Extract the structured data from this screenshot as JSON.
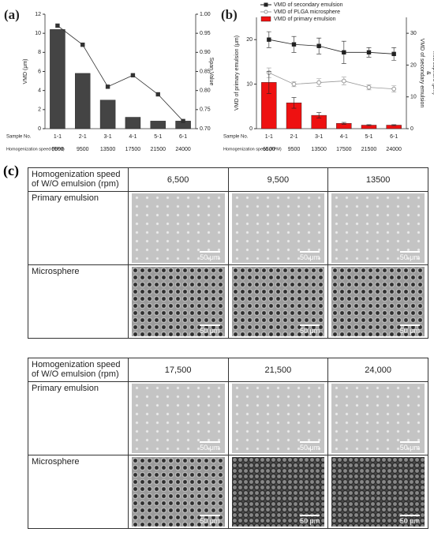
{
  "chart_data": [
    {
      "type": "combo",
      "panel_label": "(a)",
      "ylabel": "VMD (μm)",
      "y2label": [
        "Span Value"
      ],
      "row_labels": [
        "Sample No.",
        "Homogenization speed (RPM)"
      ],
      "categories": [
        "1-1",
        "2-1",
        "3-1",
        "4-1",
        "5-1",
        "6-1"
      ],
      "speeds": [
        6500,
        9500,
        13500,
        17500,
        21500,
        24000
      ],
      "ylim": [
        0,
        12
      ],
      "yticks": [
        0,
        2,
        4,
        6,
        8,
        10,
        12
      ],
      "y2lim": [
        0.7,
        1.0
      ],
      "y2ticks": [
        {
          "value": 0.7,
          "label": "0.70"
        },
        {
          "value": 0.75,
          "label": "0.75"
        },
        {
          "value": 0.8,
          "label": "0.80"
        },
        {
          "value": 0.85,
          "label": "0.85"
        },
        {
          "value": 0.9,
          "label": "0.90"
        },
        {
          "value": 0.95,
          "label": "0.95"
        },
        {
          "value": 1.0,
          "label": "1.00"
        }
      ],
      "legend": false,
      "series": [
        {
          "type": "bar",
          "color": "#444444",
          "values": [
            10.4,
            5.8,
            3.0,
            1.2,
            0.8,
            0.8
          ]
        },
        {
          "type": "line",
          "axis": "y2",
          "color": "#333333",
          "marker": "square",
          "filled": true,
          "values": [
            0.97,
            0.92,
            0.81,
            0.84,
            0.79,
            0.72
          ]
        }
      ]
    },
    {
      "type": "combo",
      "panel_label": "(b)",
      "ylabel": "VMD of primary emulsion (μm)",
      "y2label": [
        "VMD of secondary emulsion",
        "&",
        "microsphere (μm)"
      ],
      "row_labels": [
        "Sample No.",
        "Homogenization speed (RPM)"
      ],
      "categories": [
        "1-1",
        "2-1",
        "3-1",
        "4-1",
        "5-1",
        "6-1"
      ],
      "speeds": [
        6500,
        9500,
        13500,
        17500,
        21500,
        24000
      ],
      "ylim": [
        0,
        25
      ],
      "yticks": [
        0,
        10,
        20
      ],
      "y2lim": [
        0,
        35
      ],
      "y2ticks": [
        0,
        10,
        20,
        30
      ],
      "legend": true,
      "series": [
        {
          "type": "line",
          "axis": "y2",
          "name": "VMD of secondary emulsion",
          "color": "#222222",
          "marker": "square",
          "filled": true,
          "values": [
            28,
            26.5,
            26,
            24,
            24,
            23.5
          ],
          "errors": [
            2.5,
            2.5,
            2.5,
            3.5,
            1.5,
            2
          ]
        },
        {
          "type": "line",
          "axis": "y2",
          "name": "VMD of PLGA microsphere",
          "color": "#999999",
          "marker": "circle",
          "filled": false,
          "values": [
            17.6,
            14,
            14.5,
            15,
            13,
            12.5
          ],
          "errors": [
            1.5,
            0.8,
            1.2,
            1.2,
            0.8,
            1
          ]
        },
        {
          "type": "bar",
          "name": "VMD of primary emulsion",
          "color": "#ee1111",
          "values": [
            10.4,
            5.8,
            3.0,
            1.2,
            0.8,
            0.8
          ],
          "errors": [
            2.5,
            1.2,
            0.6,
            0.2,
            0.1,
            0.1
          ]
        }
      ]
    }
  ],
  "panel_c": {
    "label": "(c)",
    "tables": [
      {
        "header": [
          "Homogenization speed of W/O emulsion (rpm)",
          "6,500",
          "9,500",
          "13500"
        ],
        "rows": [
          {
            "label": "Primary emulsion",
            "scale_bars": [
              "50 μm",
              "50 μm",
              "50 μm"
            ]
          },
          {
            "label": "Microsphere",
            "scale_bars": [
              "50 μm",
              "50 μm",
              "50 μm"
            ]
          }
        ]
      },
      {
        "header": [
          "Homogenization speed of W/O emulsion (rpm)",
          "17,500",
          "21,500",
          "24,000"
        ],
        "rows": [
          {
            "label": "Primary emulsion",
            "scale_bars": [
              "50 μm",
              "50 μm",
              "50 μm"
            ]
          },
          {
            "label": "Microsphere",
            "scale_bars": [
              "50 μm",
              "50 μm",
              "50 μm"
            ]
          }
        ]
      }
    ]
  }
}
